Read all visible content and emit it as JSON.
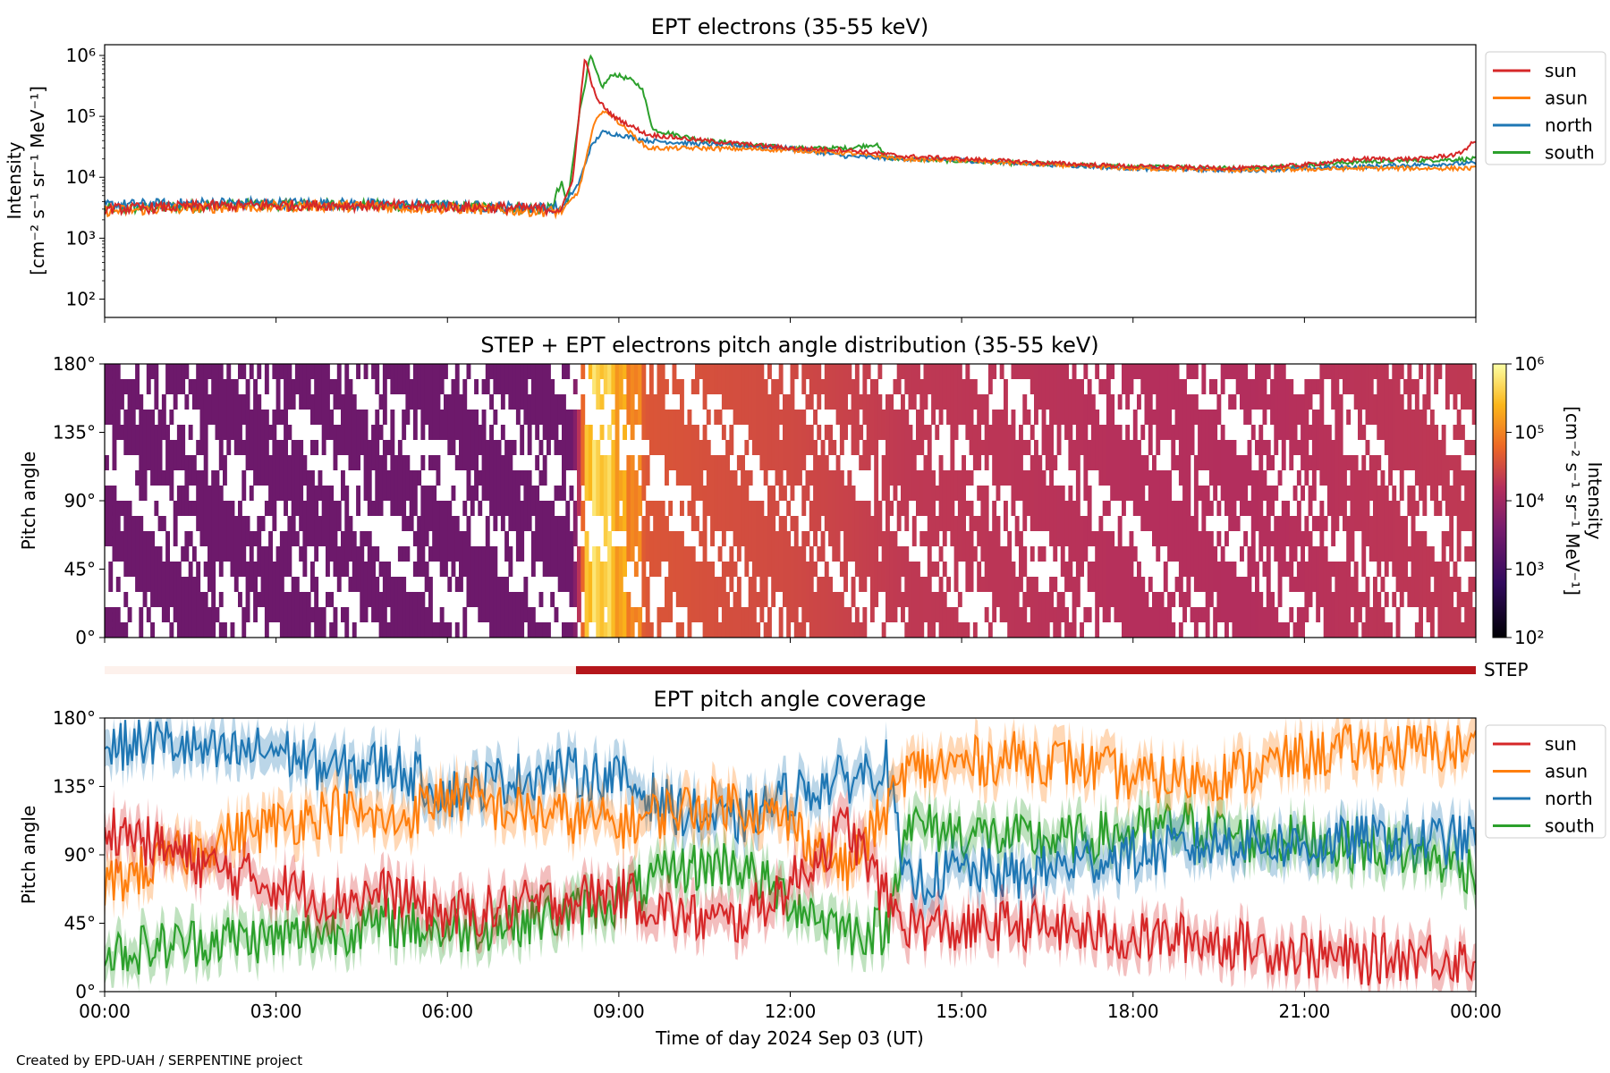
{
  "figure": {
    "credit": "Created by EPD-UAH / SERPENTINE project",
    "xlabel": "Time of day 2024 Sep 03 (UT)",
    "time_ticks": [
      "00:00",
      "03:00",
      "06:00",
      "09:00",
      "12:00",
      "15:00",
      "18:00",
      "21:00",
      "00:00"
    ],
    "step_label": "STEP"
  },
  "colors": {
    "sun": "#d62728",
    "asun": "#ff7f0e",
    "north": "#1f77b4",
    "south": "#2ca02c",
    "step_active": "#b5161b",
    "step_inactive": "#fdf1ec"
  },
  "chart_data": [
    {
      "type": "line",
      "title": "EPT electrons (35-55 keV)",
      "ylabel": "Intensity",
      "yunit": "[cm⁻² s⁻¹ sr⁻¹ MeV⁻¹]",
      "yscale": "log",
      "ylim": [
        50,
        1500000
      ],
      "yticks": [
        "10²",
        "10³",
        "10⁴",
        "10⁵",
        "10⁶"
      ],
      "xlim_hours": [
        0,
        24
      ],
      "legend": "outside-right",
      "series": [
        {
          "name": "sun",
          "x": [
            0,
            2,
            4,
            6,
            8.0,
            8.2,
            8.4,
            8.6,
            8.9,
            9.5,
            10.5,
            12,
            13,
            14,
            15,
            16,
            18,
            20,
            21,
            22,
            23,
            23.7,
            24
          ],
          "y": [
            3000,
            3400,
            3500,
            3300,
            3000,
            10000,
            900000,
            200000,
            100000,
            50000,
            40000,
            30000,
            28000,
            22000,
            20000,
            18000,
            15000,
            14000,
            16000,
            20000,
            20000,
            24000,
            40000
          ]
        },
        {
          "name": "asun",
          "x": [
            0,
            2,
            4,
            6,
            8.0,
            8.3,
            8.6,
            8.8,
            9.0,
            9.5,
            10.5,
            12,
            13,
            14,
            15,
            16,
            18,
            20,
            22,
            24
          ],
          "y": [
            2800,
            3200,
            3400,
            3100,
            2700,
            6000,
            100000,
            120000,
            80000,
            30000,
            30000,
            28000,
            25000,
            20000,
            19000,
            17000,
            14000,
            13000,
            14000,
            14000
          ]
        },
        {
          "name": "north",
          "x": [
            0,
            2,
            4,
            6,
            8.0,
            8.3,
            8.5,
            8.7,
            9.0,
            9.5,
            10.5,
            12,
            13,
            14,
            15,
            16,
            18,
            20,
            22,
            24
          ],
          "y": [
            3500,
            3800,
            3700,
            3400,
            3100,
            8000,
            30000,
            55000,
            50000,
            40000,
            35000,
            30000,
            22000,
            20000,
            19000,
            17000,
            14000,
            13000,
            15000,
            17000
          ]
        },
        {
          "name": "south",
          "x": [
            0,
            2,
            4,
            6,
            7.8,
            8.0,
            8.1,
            8.3,
            8.5,
            8.7,
            8.9,
            9.2,
            9.4,
            9.6,
            10.5,
            12,
            13,
            13.5,
            13.7,
            14,
            16,
            18,
            20,
            22,
            24
          ],
          "y": [
            3000,
            3500,
            3600,
            3300,
            3000,
            8000,
            3500,
            100000,
            1000000,
            300000,
            500000,
            400000,
            300000,
            60000,
            40000,
            30000,
            30000,
            35000,
            20000,
            20000,
            17000,
            15000,
            14000,
            18000,
            20000
          ]
        }
      ]
    },
    {
      "type": "heatmap",
      "title": "STEP + EPT electrons pitch angle distribution (35-55 keV)",
      "ylabel": "Pitch angle",
      "yticks": [
        "0°",
        "45°",
        "90°",
        "135°",
        "180°"
      ],
      "ylim": [
        0,
        180
      ],
      "xlim_hours": [
        0,
        24
      ],
      "colorbar_label": "Intensity",
      "colorbar_unit": "[cm⁻² s⁻¹ sr⁻¹ MeV⁻¹]",
      "colorbar_scale": "log",
      "colorbar_range": [
        100,
        1000000
      ],
      "colorbar_ticks": [
        "10²",
        "10³",
        "10⁴",
        "10⁵",
        "10⁶"
      ],
      "x": [
        0,
        4,
        8.2,
        8.4,
        8.8,
        9.0,
        9.5,
        10.5,
        12,
        13,
        14,
        16,
        18,
        20,
        22,
        24
      ],
      "intensity": [
        3000,
        3000,
        3000,
        100000,
        400000,
        100000,
        40000,
        35000,
        30000,
        25000,
        20000,
        18000,
        16000,
        15000,
        18000,
        20000
      ]
    },
    {
      "type": "line",
      "title": "EPT pitch angle coverage",
      "ylabel": "Pitch angle",
      "yticks": [
        "0°",
        "45°",
        "90°",
        "135°",
        "180°"
      ],
      "ylim": [
        0,
        180
      ],
      "xlim_hours": [
        0,
        24
      ],
      "legend": "outside-right",
      "series": [
        {
          "name": "sun",
          "x": [
            0,
            1,
            2,
            3,
            4,
            5,
            6,
            7,
            8,
            9,
            10,
            11,
            12,
            13,
            13.7,
            14,
            15,
            16,
            17,
            18,
            19,
            20,
            21,
            22,
            23,
            24
          ],
          "y": [
            110,
            95,
            80,
            70,
            60,
            65,
            50,
            55,
            60,
            65,
            50,
            45,
            70,
            110,
            60,
            45,
            40,
            45,
            40,
            35,
            35,
            30,
            25,
            20,
            25,
            20
          ]
        },
        {
          "name": "asun",
          "x": [
            0,
            1,
            2,
            3,
            4,
            5,
            6,
            7,
            8,
            9,
            10,
            11,
            12,
            13,
            13.7,
            14,
            15,
            16,
            17,
            18,
            19,
            20,
            21,
            22,
            23,
            24
          ],
          "y": [
            70,
            85,
            100,
            110,
            120,
            110,
            130,
            120,
            115,
            110,
            120,
            125,
            110,
            80,
            120,
            145,
            150,
            155,
            150,
            140,
            140,
            145,
            155,
            160,
            160,
            160
          ]
        },
        {
          "name": "north",
          "x": [
            0,
            1,
            2,
            3,
            4,
            5,
            6,
            7,
            8,
            9,
            10,
            11,
            12,
            13,
            13.7,
            14,
            15,
            16,
            17,
            18,
            19,
            20,
            21,
            22,
            23,
            24
          ],
          "y": [
            160,
            165,
            155,
            160,
            145,
            150,
            130,
            140,
            145,
            140,
            120,
            110,
            130,
            140,
            150,
            70,
            80,
            75,
            85,
            90,
            95,
            100,
            95,
            100,
            100,
            100
          ]
        },
        {
          "name": "south",
          "x": [
            0,
            1,
            2,
            3,
            4,
            5,
            6,
            7,
            8,
            9,
            10,
            11,
            12,
            13,
            13.7,
            14,
            15,
            16,
            17,
            18,
            19,
            20,
            21,
            22,
            23,
            24
          ],
          "y": [
            25,
            30,
            35,
            35,
            40,
            45,
            40,
            45,
            50,
            60,
            80,
            85,
            60,
            40,
            40,
            110,
            105,
            100,
            100,
            105,
            110,
            100,
            100,
            95,
            90,
            80
          ]
        }
      ]
    }
  ]
}
